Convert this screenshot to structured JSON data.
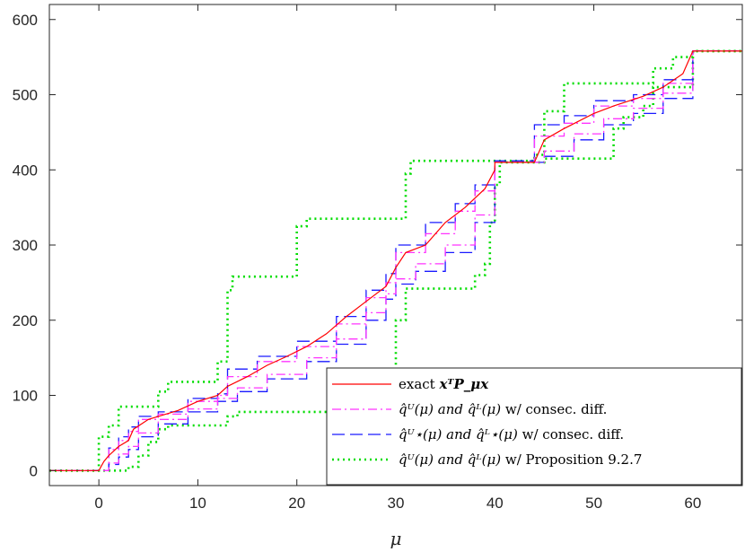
{
  "chart_data": {
    "type": "line",
    "title": "",
    "xlabel": "μ",
    "ylabel": "",
    "xlim": [
      -5,
      65
    ],
    "ylim": [
      -20,
      620
    ],
    "xticks": [
      0,
      10,
      20,
      30,
      40,
      50,
      60
    ],
    "yticks": [
      0,
      100,
      200,
      300,
      400,
      500,
      600
    ],
    "grid": false,
    "legend_position": "bottom-right",
    "colors": {
      "exact": "#ff0000",
      "consec": "#ff33ff",
      "consec_star": "#1a1aff",
      "prop": "#00dd00",
      "axis": "#262626"
    },
    "series": [
      {
        "name": "exact xᵀP_μx",
        "style": "solid",
        "color": "#ff0000",
        "points": [
          [
            -5,
            0
          ],
          [
            0,
            0
          ],
          [
            0.5,
            12
          ],
          [
            1,
            20
          ],
          [
            2,
            32
          ],
          [
            3,
            40
          ],
          [
            3.5,
            55
          ],
          [
            5,
            68
          ],
          [
            6,
            72
          ],
          [
            8,
            80
          ],
          [
            10,
            92
          ],
          [
            12,
            100
          ],
          [
            13,
            112
          ],
          [
            15,
            125
          ],
          [
            17,
            140
          ],
          [
            19,
            152
          ],
          [
            21,
            165
          ],
          [
            23,
            182
          ],
          [
            25,
            205
          ],
          [
            27,
            225
          ],
          [
            29,
            245
          ],
          [
            30,
            270
          ],
          [
            31,
            290
          ],
          [
            33,
            300
          ],
          [
            35,
            330
          ],
          [
            37,
            350
          ],
          [
            39,
            375
          ],
          [
            40,
            400
          ],
          [
            40,
            410
          ],
          [
            44,
            410
          ],
          [
            45,
            440
          ],
          [
            47,
            455
          ],
          [
            50,
            475
          ],
          [
            52,
            485
          ],
          [
            55,
            498
          ],
          [
            57,
            510
          ],
          [
            59,
            528
          ],
          [
            60,
            558
          ],
          [
            65,
            558
          ]
        ]
      },
      {
        "name": "consec diff (upper/lower)",
        "style": "dashdot",
        "color": "#ff33ff",
        "upper": [
          [
            -5,
            0
          ],
          [
            0,
            0
          ],
          [
            1,
            28
          ],
          [
            2,
            40
          ],
          [
            3,
            52
          ],
          [
            4,
            68
          ],
          [
            6,
            75
          ],
          [
            9,
            92
          ],
          [
            12,
            100
          ],
          [
            13,
            125
          ],
          [
            16,
            145
          ],
          [
            20,
            165
          ],
          [
            24,
            195
          ],
          [
            27,
            230
          ],
          [
            29,
            250
          ],
          [
            30,
            290
          ],
          [
            33,
            315
          ],
          [
            36,
            345
          ],
          [
            38,
            372
          ],
          [
            40,
            410
          ],
          [
            44,
            410
          ],
          [
            44,
            445
          ],
          [
            47,
            462
          ],
          [
            50,
            485
          ],
          [
            54,
            495
          ],
          [
            57,
            515
          ],
          [
            60,
            558
          ],
          [
            65,
            558
          ]
        ],
        "lower": [
          [
            -5,
            0
          ],
          [
            0,
            0
          ],
          [
            1,
            10
          ],
          [
            2,
            22
          ],
          [
            3,
            32
          ],
          [
            4,
            50
          ],
          [
            6,
            68
          ],
          [
            9,
            82
          ],
          [
            12,
            96
          ],
          [
            14,
            110
          ],
          [
            17,
            128
          ],
          [
            21,
            150
          ],
          [
            24,
            175
          ],
          [
            27,
            210
          ],
          [
            29,
            235
          ],
          [
            30,
            255
          ],
          [
            32,
            275
          ],
          [
            35,
            300
          ],
          [
            38,
            340
          ],
          [
            40,
            380
          ],
          [
            40,
            410
          ],
          [
            44,
            410
          ],
          [
            45,
            425
          ],
          [
            48,
            448
          ],
          [
            51,
            468
          ],
          [
            54,
            482
          ],
          [
            57,
            502
          ],
          [
            60,
            540
          ],
          [
            60,
            558
          ],
          [
            65,
            558
          ]
        ]
      },
      {
        "name": "consec diff star (upper/lower)",
        "style": "dashed",
        "color": "#1a1aff",
        "upper": [
          [
            -5,
            0
          ],
          [
            0,
            0
          ],
          [
            1,
            30
          ],
          [
            2,
            45
          ],
          [
            3,
            58
          ],
          [
            4,
            72
          ],
          [
            6,
            78
          ],
          [
            9,
            96
          ],
          [
            12,
            102
          ],
          [
            13,
            135
          ],
          [
            16,
            152
          ],
          [
            20,
            172
          ],
          [
            24,
            205
          ],
          [
            27,
            240
          ],
          [
            29,
            262
          ],
          [
            30,
            300
          ],
          [
            33,
            330
          ],
          [
            36,
            355
          ],
          [
            38,
            380
          ],
          [
            40,
            412
          ],
          [
            44,
            412
          ],
          [
            44,
            460
          ],
          [
            47,
            472
          ],
          [
            50,
            492
          ],
          [
            54,
            500
          ],
          [
            57,
            520
          ],
          [
            60,
            558
          ],
          [
            65,
            558
          ]
        ],
        "lower": [
          [
            -5,
            0
          ],
          [
            0,
            0
          ],
          [
            1,
            8
          ],
          [
            2,
            18
          ],
          [
            3,
            28
          ],
          [
            4,
            45
          ],
          [
            6,
            62
          ],
          [
            9,
            78
          ],
          [
            12,
            92
          ],
          [
            14,
            105
          ],
          [
            17,
            122
          ],
          [
            21,
            145
          ],
          [
            24,
            168
          ],
          [
            27,
            200
          ],
          [
            29,
            228
          ],
          [
            30,
            248
          ],
          [
            32,
            265
          ],
          [
            35,
            290
          ],
          [
            38,
            330
          ],
          [
            40,
            372
          ],
          [
            40,
            410
          ],
          [
            44,
            410
          ],
          [
            45,
            418
          ],
          [
            48,
            440
          ],
          [
            51,
            460
          ],
          [
            54,
            475
          ],
          [
            57,
            495
          ],
          [
            60,
            535
          ],
          [
            60,
            558
          ],
          [
            65,
            558
          ]
        ]
      },
      {
        "name": "Proposition 9.2.7 (upper/lower)",
        "style": "dotted",
        "color": "#00dd00",
        "upper": [
          [
            -5,
            0
          ],
          [
            0,
            0
          ],
          [
            0,
            45
          ],
          [
            1,
            60
          ],
          [
            2,
            85
          ],
          [
            5,
            85
          ],
          [
            6,
            105
          ],
          [
            7,
            118
          ],
          [
            11,
            118
          ],
          [
            12,
            145
          ],
          [
            13,
            240
          ],
          [
            13.5,
            258
          ],
          [
            19,
            258
          ],
          [
            20,
            325
          ],
          [
            21,
            335
          ],
          [
            30,
            335
          ],
          [
            31,
            395
          ],
          [
            31.5,
            412
          ],
          [
            44,
            412
          ],
          [
            44,
            420
          ],
          [
            45,
            478
          ],
          [
            47,
            515
          ],
          [
            54,
            515
          ],
          [
            56,
            535
          ],
          [
            58,
            550
          ],
          [
            60,
            558
          ],
          [
            65,
            558
          ]
        ],
        "lower": [
          [
            -5,
            0
          ],
          [
            0,
            0
          ],
          [
            2,
            0
          ],
          [
            3,
            5
          ],
          [
            4,
            20
          ],
          [
            5,
            38
          ],
          [
            6,
            55
          ],
          [
            7,
            60
          ],
          [
            12,
            60
          ],
          [
            13,
            72
          ],
          [
            14,
            78
          ],
          [
            29,
            78
          ],
          [
            30,
            200
          ],
          [
            31,
            242
          ],
          [
            37,
            242
          ],
          [
            38,
            260
          ],
          [
            39,
            275
          ],
          [
            39.5,
            330
          ],
          [
            40,
            380
          ],
          [
            40.5,
            410
          ],
          [
            44,
            410
          ],
          [
            45,
            415
          ],
          [
            51,
            415
          ],
          [
            52,
            455
          ],
          [
            53,
            470
          ],
          [
            55,
            485
          ],
          [
            56,
            510
          ],
          [
            59,
            510
          ],
          [
            60,
            535
          ],
          [
            60,
            558
          ],
          [
            65,
            558
          ]
        ]
      }
    ],
    "legend": [
      {
        "key": "exact",
        "prefix": "exact ",
        "math": "xᵀP_μx",
        "suffix": ""
      },
      {
        "key": "consec",
        "prefix": "",
        "math": "q̂ᵁ(μ) and q̂ᴸ(μ)",
        "suffix": " w/ consec. diff."
      },
      {
        "key": "consec_star",
        "prefix": "",
        "math": "q̂ᵁ⋆(μ) and q̂ᴸ⋆(μ)",
        "suffix": " w/ consec. diff."
      },
      {
        "key": "prop",
        "prefix": "",
        "math": "q̂ᵁ(μ) and q̂ᴸ(μ)",
        "suffix": " w/ Proposition 9.2.7"
      }
    ]
  }
}
